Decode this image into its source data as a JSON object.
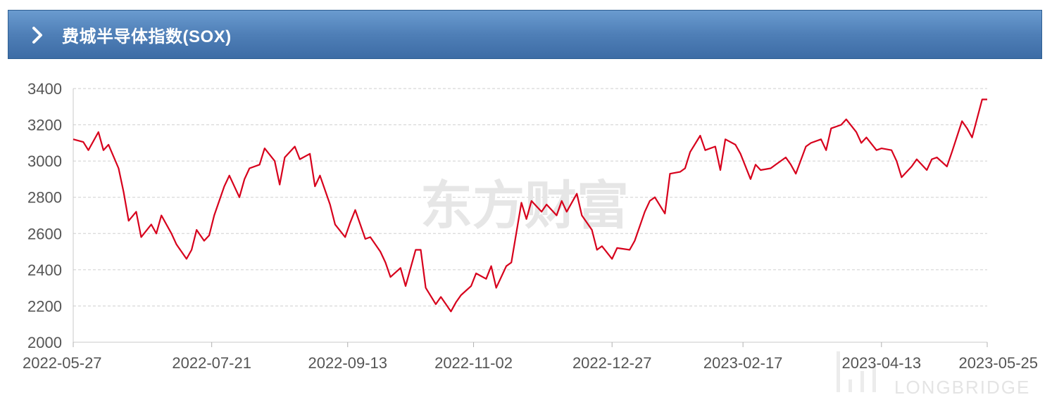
{
  "header": {
    "title": "费城半导体指数(SOX)",
    "icon": "chevron-right-icon"
  },
  "watermarks": {
    "center": "东方财富",
    "corner": "LONGBRIDGE"
  },
  "colors": {
    "header_top": "#6a9bcf",
    "header_bottom": "#3d6ca5",
    "line": "#d7001c",
    "grid": "#cfcfcf",
    "axis_text": "#555555"
  },
  "chart_data": {
    "type": "line",
    "title": "",
    "xlabel": "",
    "ylabel": "",
    "ylim": [
      2000,
      3400
    ],
    "y_ticks": [
      2000,
      2200,
      2400,
      2600,
      2800,
      3000,
      3200,
      3400
    ],
    "x_ticks": [
      "2022-05-27",
      "2022-07-21",
      "2022-09-13",
      "2022-11-02",
      "2022-12-27",
      "2023-02-17",
      "2023-04-13",
      "2023-05-25"
    ],
    "grid": true,
    "legend": "none",
    "series": [
      {
        "x": [
          "2022-05-27",
          "2022-05-31",
          "2022-06-02",
          "2022-06-06",
          "2022-06-08",
          "2022-06-10",
          "2022-06-14",
          "2022-06-16",
          "2022-06-18",
          "2022-06-21",
          "2022-06-23",
          "2022-06-27",
          "2022-06-29",
          "2022-07-01",
          "2022-07-05",
          "2022-07-07",
          "2022-07-11",
          "2022-07-13",
          "2022-07-15",
          "2022-07-18",
          "2022-07-20",
          "2022-07-22",
          "2022-07-26",
          "2022-07-28",
          "2022-08-01",
          "2022-08-03",
          "2022-08-05",
          "2022-08-09",
          "2022-08-11",
          "2022-08-15",
          "2022-08-17",
          "2022-08-19",
          "2022-08-23",
          "2022-08-25",
          "2022-08-29",
          "2022-08-31",
          "2022-09-02",
          "2022-09-06",
          "2022-09-08",
          "2022-09-12",
          "2022-09-14",
          "2022-09-16",
          "2022-09-20",
          "2022-09-22",
          "2022-09-26",
          "2022-09-28",
          "2022-09-30",
          "2022-10-04",
          "2022-10-06",
          "2022-10-10",
          "2022-10-12",
          "2022-10-14",
          "2022-10-18",
          "2022-10-20",
          "2022-10-24",
          "2022-10-26",
          "2022-10-28",
          "2022-11-01",
          "2022-11-03",
          "2022-11-07",
          "2022-11-09",
          "2022-11-11",
          "2022-11-15",
          "2022-11-17",
          "2022-11-21",
          "2022-11-23",
          "2022-11-25",
          "2022-11-29",
          "2022-12-01",
          "2022-12-05",
          "2022-12-07",
          "2022-12-09",
          "2022-12-13",
          "2022-12-15",
          "2022-12-19",
          "2022-12-21",
          "2022-12-23",
          "2022-12-27",
          "2022-12-29",
          "2023-01-03",
          "2023-01-05",
          "2023-01-09",
          "2023-01-11",
          "2023-01-13",
          "2023-01-17",
          "2023-01-19",
          "2023-01-23",
          "2023-01-25",
          "2023-01-27",
          "2023-01-31",
          "2023-02-02",
          "2023-02-06",
          "2023-02-08",
          "2023-02-10",
          "2023-02-14",
          "2023-02-16",
          "2023-02-20",
          "2023-02-22",
          "2023-02-24",
          "2023-02-28",
          "2023-03-02",
          "2023-03-06",
          "2023-03-08",
          "2023-03-10",
          "2023-03-14",
          "2023-03-16",
          "2023-03-20",
          "2023-03-22",
          "2023-03-24",
          "2023-03-28",
          "2023-03-30",
          "2023-04-03",
          "2023-04-05",
          "2023-04-07",
          "2023-04-11",
          "2023-04-13",
          "2023-04-17",
          "2023-04-19",
          "2023-04-21",
          "2023-04-25",
          "2023-04-27",
          "2023-05-01",
          "2023-05-03",
          "2023-05-05",
          "2023-05-09",
          "2023-05-11",
          "2023-05-15",
          "2023-05-17",
          "2023-05-19",
          "2023-05-23",
          "2023-05-25"
        ],
        "values": [
          3120,
          3105,
          3060,
          3160,
          3060,
          3090,
          2960,
          2830,
          2670,
          2720,
          2580,
          2650,
          2600,
          2700,
          2600,
          2540,
          2460,
          2510,
          2620,
          2560,
          2590,
          2700,
          2860,
          2920,
          2800,
          2900,
          2960,
          2980,
          3070,
          3000,
          2870,
          3020,
          3080,
          3010,
          3040,
          2860,
          2920,
          2760,
          2650,
          2580,
          2660,
          2730,
          2570,
          2580,
          2500,
          2440,
          2360,
          2410,
          2310,
          2510,
          2510,
          2300,
          2210,
          2250,
          2170,
          2220,
          2260,
          2310,
          2380,
          2350,
          2420,
          2300,
          2420,
          2440,
          2770,
          2680,
          2780,
          2720,
          2760,
          2700,
          2780,
          2720,
          2820,
          2700,
          2620,
          2510,
          2530,
          2460,
          2520,
          2510,
          2560,
          2720,
          2780,
          2800,
          2710,
          2930,
          2940,
          2960,
          3050,
          3140,
          3060,
          3080,
          2950,
          3120,
          3090,
          3040,
          2900,
          2980,
          2950,
          2960,
          2980,
          3020,
          2980,
          2930,
          3080,
          3100,
          3120,
          3060,
          3180,
          3200,
          3230,
          3160,
          3100,
          3130,
          3060,
          3070,
          3060,
          3000,
          2910,
          2970,
          3010,
          2950,
          3010,
          3020,
          2970,
          3050,
          3220,
          3180,
          3130,
          3340,
          3340
        ]
      }
    ]
  }
}
